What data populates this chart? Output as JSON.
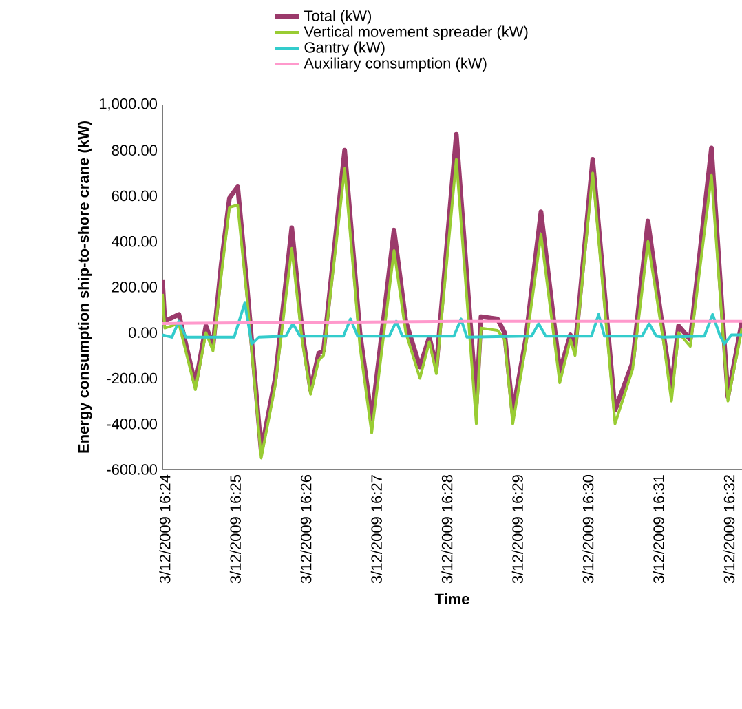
{
  "chart_data": {
    "type": "line",
    "xlabel": "Time",
    "ylabel": "Energy consumption ship-to-shore crane (kW)",
    "legend": "top",
    "xlim": [
      "2009-03-12T16:23:58",
      "2009-03-12T16:32:11"
    ],
    "ylim": [
      -600,
      1000
    ],
    "xticks": [
      {
        "value": "2009-03-12T16:24",
        "label": "3/12/2009 16:24"
      },
      {
        "value": "2009-03-12T16:25",
        "label": "3/12/2009 16:25"
      },
      {
        "value": "2009-03-12T16:26",
        "label": "3/12/2009 16:26"
      },
      {
        "value": "2009-03-12T16:27",
        "label": "3/12/2009 16:27"
      },
      {
        "value": "2009-03-12T16:28",
        "label": "3/12/2009 16:28"
      },
      {
        "value": "2009-03-12T16:29",
        "label": "3/12/2009 16:29"
      },
      {
        "value": "2009-03-12T16:30",
        "label": "3/12/2009 16:30"
      },
      {
        "value": "2009-03-12T16:31",
        "label": "3/12/2009 16:31"
      },
      {
        "value": "2009-03-12T16:32",
        "label": "3/12/2009 16:32"
      }
    ],
    "yticks": [
      {
        "value": -600,
        "label": "-600.00"
      },
      {
        "value": -400,
        "label": "-400.00"
      },
      {
        "value": -200,
        "label": "-200.00"
      },
      {
        "value": 0,
        "label": "0.00"
      },
      {
        "value": 200,
        "label": "200.00"
      },
      {
        "value": 400,
        "label": "400.00"
      },
      {
        "value": 600,
        "label": "600.00"
      },
      {
        "value": 800,
        "label": "800.00"
      },
      {
        "value": 1000,
        "label": "1,000.00"
      }
    ],
    "series": [
      {
        "name": "Total (kW)",
        "color": "#9b3a6b",
        "x": [
          "2009-03-12T16:23:58",
          "2009-03-12T16:24:00",
          "2009-03-12T16:24:12",
          "2009-03-12T16:24:26",
          "2009-03-12T16:24:35",
          "2009-03-12T16:24:41",
          "2009-03-12T16:24:48",
          "2009-03-12T16:24:55",
          "2009-03-12T16:25:02",
          "2009-03-12T16:25:10",
          "2009-03-12T16:25:22",
          "2009-03-12T16:25:34",
          "2009-03-12T16:25:48",
          "2009-03-12T16:25:57",
          "2009-03-12T16:26:04",
          "2009-03-12T16:26:11",
          "2009-03-12T16:26:15",
          "2009-03-12T16:26:33",
          "2009-03-12T16:26:46",
          "2009-03-12T16:26:56",
          "2009-03-12T16:27:15",
          "2009-03-12T16:27:25",
          "2009-03-12T16:27:37",
          "2009-03-12T16:27:45",
          "2009-03-12T16:27:51",
          "2009-03-12T16:28:08",
          "2009-03-12T16:28:25",
          "2009-03-12T16:28:29",
          "2009-03-12T16:28:43",
          "2009-03-12T16:28:49",
          "2009-03-12T16:28:56",
          "2009-03-12T16:29:07",
          "2009-03-12T16:29:20",
          "2009-03-12T16:29:36",
          "2009-03-12T16:29:45",
          "2009-03-12T16:29:49",
          "2009-03-12T16:30:04",
          "2009-03-12T16:30:23",
          "2009-03-12T16:30:38",
          "2009-03-12T16:30:51",
          "2009-03-12T16:31:04",
          "2009-03-12T16:31:11",
          "2009-03-12T16:31:17",
          "2009-03-12T16:31:27",
          "2009-03-12T16:31:45",
          "2009-03-12T16:31:59",
          "2009-03-12T16:32:11"
        ],
        "values": [
          230,
          50,
          80,
          -230,
          30,
          -60,
          300,
          590,
          640,
          200,
          -520,
          -200,
          460,
          0,
          -250,
          -90,
          -80,
          800,
          0,
          -380,
          450,
          50,
          -150,
          -20,
          -150,
          870,
          -310,
          70,
          60,
          0,
          -350,
          -30,
          530,
          -170,
          -10,
          -70,
          760,
          -340,
          -130,
          490,
          0,
          -240,
          30,
          -30,
          810,
          -280,
          50
        ]
      },
      {
        "name": "Vertical movement spreader (kW)",
        "color": "#99cc33",
        "x": [
          "2009-03-12T16:23:58",
          "2009-03-12T16:24:00",
          "2009-03-12T16:24:12",
          "2009-03-12T16:24:26",
          "2009-03-12T16:24:35",
          "2009-03-12T16:24:41",
          "2009-03-12T16:24:48",
          "2009-03-12T16:24:55",
          "2009-03-12T16:25:02",
          "2009-03-12T16:25:10",
          "2009-03-12T16:25:22",
          "2009-03-12T16:25:34",
          "2009-03-12T16:25:48",
          "2009-03-12T16:25:57",
          "2009-03-12T16:26:04",
          "2009-03-12T16:26:11",
          "2009-03-12T16:26:15",
          "2009-03-12T16:26:33",
          "2009-03-12T16:26:46",
          "2009-03-12T16:26:56",
          "2009-03-12T16:27:15",
          "2009-03-12T16:27:25",
          "2009-03-12T16:27:37",
          "2009-03-12T16:27:45",
          "2009-03-12T16:27:51",
          "2009-03-12T16:28:08",
          "2009-03-12T16:28:25",
          "2009-03-12T16:28:29",
          "2009-03-12T16:28:43",
          "2009-03-12T16:28:49",
          "2009-03-12T16:28:56",
          "2009-03-12T16:29:07",
          "2009-03-12T16:29:20",
          "2009-03-12T16:29:36",
          "2009-03-12T16:29:45",
          "2009-03-12T16:29:49",
          "2009-03-12T16:30:04",
          "2009-03-12T16:30:23",
          "2009-03-12T16:30:38",
          "2009-03-12T16:30:51",
          "2009-03-12T16:31:04",
          "2009-03-12T16:31:11",
          "2009-03-12T16:31:17",
          "2009-03-12T16:31:27",
          "2009-03-12T16:31:45",
          "2009-03-12T16:31:59",
          "2009-03-12T16:32:11"
        ],
        "values": [
          170,
          20,
          40,
          -250,
          0,
          -80,
          250,
          550,
          560,
          150,
          -550,
          -230,
          370,
          -40,
          -270,
          -120,
          -100,
          720,
          -60,
          -440,
          360,
          0,
          -200,
          -40,
          -180,
          760,
          -400,
          20,
          10,
          -30,
          -400,
          -60,
          430,
          -220,
          -30,
          -100,
          700,
          -400,
          -160,
          400,
          -30,
          -300,
          0,
          -60,
          690,
          -300,
          20
        ]
      },
      {
        "name": "Gantry (kW)",
        "color": "#33cccc",
        "x": [
          "2009-03-12T16:23:58",
          "2009-03-12T16:24:06",
          "2009-03-12T16:24:12",
          "2009-03-12T16:24:18",
          "2009-03-12T16:24:59",
          "2009-03-12T16:25:08",
          "2009-03-12T16:25:14",
          "2009-03-12T16:25:20",
          "2009-03-12T16:25:43",
          "2009-03-12T16:25:49",
          "2009-03-12T16:25:55",
          "2009-03-12T16:26:32",
          "2009-03-12T16:26:38",
          "2009-03-12T16:26:44",
          "2009-03-12T16:27:11",
          "2009-03-12T16:27:17",
          "2009-03-12T16:27:22",
          "2009-03-12T16:28:06",
          "2009-03-12T16:28:12",
          "2009-03-12T16:28:17",
          "2009-03-12T16:29:12",
          "2009-03-12T16:29:18",
          "2009-03-12T16:29:24",
          "2009-03-12T16:30:03",
          "2009-03-12T16:30:09",
          "2009-03-12T16:30:14",
          "2009-03-12T16:30:46",
          "2009-03-12T16:30:52",
          "2009-03-12T16:30:58",
          "2009-03-12T16:31:04",
          "2009-03-12T16:31:39",
          "2009-03-12T16:31:46",
          "2009-03-12T16:31:52",
          "2009-03-12T16:31:56",
          "2009-03-12T16:32:02",
          "2009-03-12T16:32:11"
        ],
        "values": [
          -10,
          -20,
          50,
          -20,
          -20,
          130,
          -50,
          -20,
          -15,
          40,
          -15,
          -15,
          60,
          -15,
          -15,
          50,
          -15,
          -15,
          60,
          -20,
          -15,
          40,
          -15,
          -15,
          80,
          -15,
          -15,
          40,
          -15,
          -20,
          -15,
          80,
          -10,
          -50,
          -10,
          -10
        ]
      },
      {
        "name": "Auxiliary consumption (kW)",
        "color": "#ff99cc",
        "x": [
          "2009-03-12T16:23:58",
          "2009-03-12T16:28:08",
          "2009-03-12T16:32:11"
        ],
        "values": [
          40,
          50,
          50
        ]
      }
    ]
  }
}
